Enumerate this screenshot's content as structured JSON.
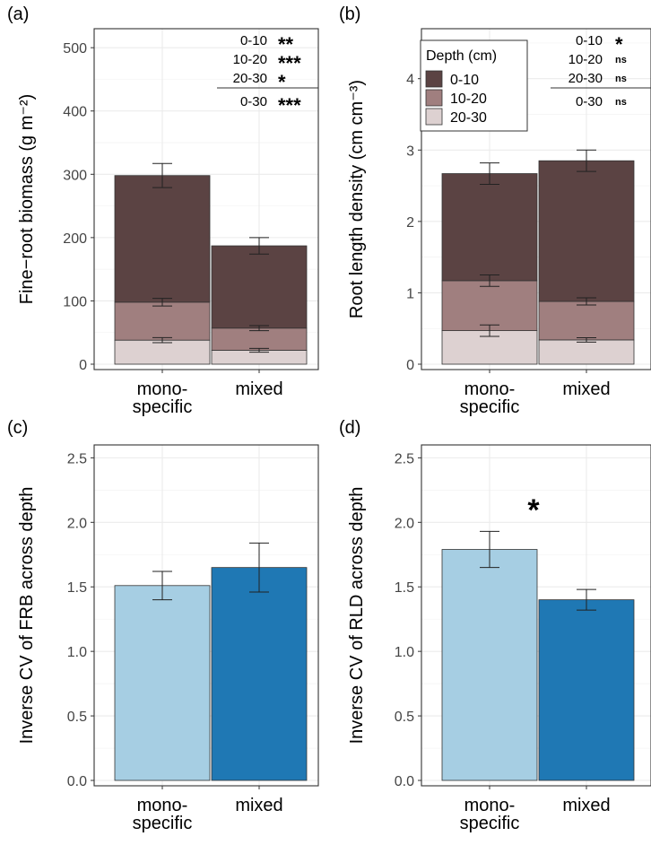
{
  "chart_data": [
    {
      "panel": "(a)",
      "type": "bar",
      "stacked": true,
      "categories": [
        "mono-\nspecific",
        "mixed"
      ],
      "ylabel": "Fine−root biomass (g m⁻²)",
      "ylim": [
        0,
        530
      ],
      "yticks": [
        0,
        100,
        200,
        300,
        400,
        500
      ],
      "series": [
        {
          "name": "20-30",
          "color": "#ddd1d1",
          "values": [
            38,
            22
          ],
          "cumulative_error": [
            4,
            3
          ]
        },
        {
          "name": "10-20",
          "color": "#a07f7f",
          "values": [
            60,
            35
          ],
          "cumulative_error": [
            6,
            4
          ]
        },
        {
          "name": "0-10",
          "color": "#5b4343",
          "values": [
            200,
            130
          ],
          "cumulative_error": [
            19,
            13
          ]
        }
      ],
      "significance": [
        {
          "depth": "0-10",
          "mark": "**"
        },
        {
          "depth": "10-20",
          "mark": "***"
        },
        {
          "depth": "20-30",
          "mark": "*"
        },
        {
          "depth": "0-30",
          "mark": "***"
        }
      ]
    },
    {
      "panel": "(b)",
      "type": "bar",
      "stacked": true,
      "categories": [
        "mono-\nspecific",
        "mixed"
      ],
      "ylabel": "Root length density (cm cm⁻³)",
      "ylim": [
        0,
        4.7
      ],
      "yticks": [
        0,
        1,
        2,
        3,
        4
      ],
      "series": [
        {
          "name": "20-30",
          "color": "#ddd1d1",
          "values": [
            0.47,
            0.34
          ],
          "cumulative_error": [
            0.08,
            0.03
          ]
        },
        {
          "name": "10-20",
          "color": "#a07f7f",
          "values": [
            0.7,
            0.54
          ],
          "cumulative_error": [
            0.08,
            0.05
          ]
        },
        {
          "name": "0-10",
          "color": "#5b4343",
          "values": [
            1.5,
            1.97
          ],
          "cumulative_error": [
            0.15,
            0.15
          ]
        }
      ],
      "legend": {
        "title": "Depth (cm)",
        "entries": [
          "0-10",
          "10-20",
          "20-30"
        ],
        "placement": "top-left"
      },
      "significance": [
        {
          "depth": "0-10",
          "mark": "*"
        },
        {
          "depth": "10-20",
          "mark": "ns"
        },
        {
          "depth": "20-30",
          "mark": "ns"
        },
        {
          "depth": "0-30",
          "mark": "ns"
        }
      ]
    },
    {
      "panel": "(c)",
      "type": "bar",
      "categories": [
        "mono-\nspecific",
        "mixed"
      ],
      "ylabel": "Inverse CV of FRB across depth",
      "ylim": [
        0,
        2.6
      ],
      "yticks": [
        "0.0",
        "0.5",
        "1.0",
        "1.5",
        "2.0",
        "2.5"
      ],
      "values": [
        1.51,
        1.65
      ],
      "errors": [
        0.11,
        0.19
      ],
      "colors": [
        "#a6cee3",
        "#1f78b4"
      ]
    },
    {
      "panel": "(d)",
      "type": "bar",
      "categories": [
        "mono-\nspecific",
        "mixed"
      ],
      "ylabel": "Inverse CV of RLD across depth",
      "ylim": [
        0,
        2.6
      ],
      "yticks": [
        "0.0",
        "0.5",
        "1.0",
        "1.5",
        "2.0",
        "2.5"
      ],
      "values": [
        1.79,
        1.4
      ],
      "errors": [
        0.14,
        0.08
      ],
      "colors": [
        "#a6cee3",
        "#1f78b4"
      ],
      "annotation": "*"
    }
  ]
}
